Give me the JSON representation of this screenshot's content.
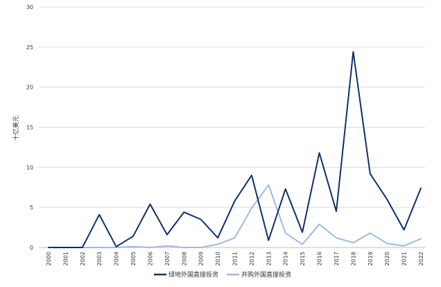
{
  "chart_data": {
    "type": "line",
    "ylabel": "十亿美元",
    "xlabel": "",
    "title": "",
    "ylim": [
      0,
      30
    ],
    "yticks": [
      "0",
      "5",
      "10",
      "15",
      "20",
      "25",
      "30"
    ],
    "grid": "horizontal",
    "legend_position": "bottom",
    "categories": [
      "2000",
      "2001",
      "2002",
      "2003",
      "2004",
      "2005",
      "2006",
      "2007",
      "2008",
      "2009",
      "2010",
      "2011",
      "2012",
      "2013",
      "2014",
      "2015",
      "2016",
      "2017",
      "2018",
      "2019",
      "2020",
      "2021",
      "2022"
    ],
    "series": [
      {
        "name": "绿地外国直接投资",
        "color": "#0d2e6e",
        "values": [
          0,
          0,
          0,
          4.1,
          0.1,
          1.4,
          5.4,
          1.6,
          4.4,
          3.5,
          1.2,
          5.8,
          9.0,
          0.9,
          7.3,
          1.9,
          11.8,
          4.5,
          24.4,
          9.2,
          6.0,
          2.2,
          7.4
        ]
      },
      {
        "name": "并购外国直接投资",
        "color": "#9fb8e3",
        "values": [
          0,
          0,
          0,
          0,
          0,
          0.1,
          0,
          0.2,
          0,
          0,
          0.4,
          1.2,
          4.9,
          7.8,
          1.8,
          0.4,
          2.9,
          1.2,
          0.6,
          1.8,
          0.5,
          0.2,
          1.1
        ]
      }
    ]
  }
}
